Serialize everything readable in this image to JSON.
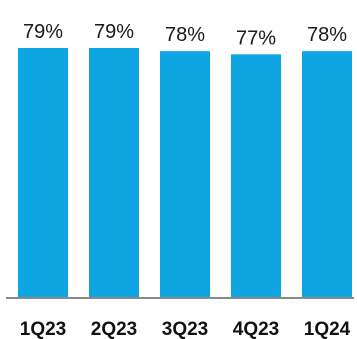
{
  "chart_data": {
    "type": "bar",
    "categories": [
      "1Q23",
      "2Q23",
      "3Q23",
      "4Q23",
      "1Q24"
    ],
    "values": [
      79,
      79,
      78,
      77,
      78
    ],
    "data_labels": [
      "79%",
      "79%",
      "78%",
      "77%",
      "78%"
    ],
    "title": "",
    "xlabel": "",
    "ylabel": "",
    "ylim": [
      0,
      79
    ],
    "grid": false,
    "legend": "none",
    "colors": {
      "bar": "#0ea5e3",
      "axis": "#8a8a8a",
      "label_text": "#1a1a1a",
      "tick_text": "#111111"
    }
  }
}
